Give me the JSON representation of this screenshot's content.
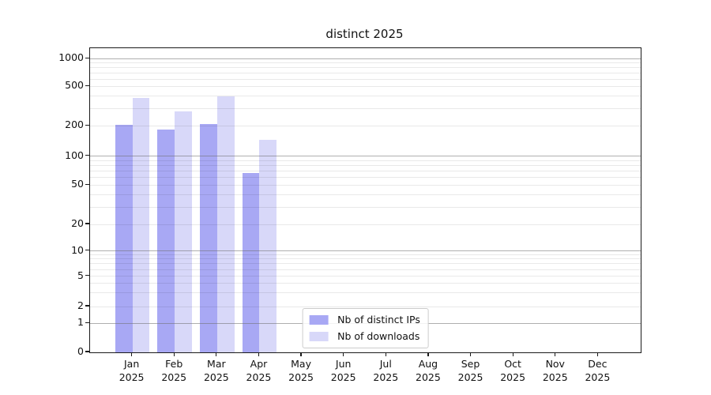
{
  "chart_data": {
    "type": "bar",
    "title": "distinct 2025",
    "yscale": "symlog",
    "xlabel": "",
    "ylabel": "",
    "categories": [
      "Jan 2025",
      "Feb 2025",
      "Mar 2025",
      "Apr 2025",
      "May 2025",
      "Jun 2025",
      "Jul 2025",
      "Aug 2025",
      "Sep 2025",
      "Oct 2025",
      "Nov 2025",
      "Dec 2025"
    ],
    "series": [
      {
        "name": "Nb of distinct IPs",
        "color": "#a8a8f4",
        "values": [
          205,
          185,
          207,
          67,
          0,
          0,
          0,
          0,
          0,
          0,
          0,
          0
        ]
      },
      {
        "name": "Nb of downloads",
        "color": "#d8d8f9",
        "values": [
          380,
          280,
          395,
          145,
          0,
          0,
          0,
          0,
          0,
          0,
          0,
          0
        ]
      }
    ],
    "y_ticks": [
      0,
      1,
      2,
      5,
      10,
      20,
      50,
      100,
      200,
      500,
      1000
    ],
    "y_major_gridlines": [
      1,
      10,
      100,
      1000
    ],
    "ylim": [
      0,
      1000
    ],
    "grid": true,
    "legend_position": "lower center"
  },
  "colors": {
    "major_grid": "#6e6e6e",
    "minor_grid": "#e9e9e9",
    "spine": "#1a1a1a",
    "text": "#111111",
    "background": "#ffffff"
  }
}
